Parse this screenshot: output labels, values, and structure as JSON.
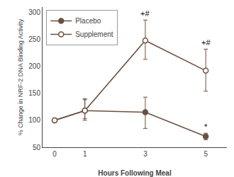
{
  "chart_data": {
    "type": "line",
    "xlabel": "Hours Following Meal",
    "ylabel": "% Change in NRF-2 DNA Binding Activity",
    "x": [
      0,
      1,
      3,
      5
    ],
    "series": [
      {
        "name": "Placebo",
        "color": "#6b5040",
        "marker": "filled",
        "values": [
          100,
          118,
          115,
          70
        ],
        "yerr_lo": [
          0,
          15,
          30,
          6
        ],
        "yerr_hi": [
          0,
          20,
          28,
          6
        ]
      },
      {
        "name": "Supplement",
        "color": "#6b5040",
        "marker": "open",
        "values": [
          100,
          118,
          248,
          192
        ],
        "yerr_lo": [
          0,
          18,
          35,
          38
        ],
        "yerr_hi": [
          0,
          22,
          38,
          40
        ]
      }
    ],
    "annotations": [
      {
        "text": "+#",
        "x": 3,
        "y": 288
      },
      {
        "text": "+#",
        "x": 5,
        "y": 234
      },
      {
        "text": "*",
        "x": 5,
        "y": 78
      }
    ],
    "xlim": [
      -0.4,
      5.7
    ],
    "xticks": [
      0,
      1,
      3,
      5
    ],
    "ylim": [
      50,
      310
    ],
    "yticks": [
      50,
      100,
      150,
      200,
      250,
      300
    ],
    "grid": false,
    "legend": "upper left"
  }
}
